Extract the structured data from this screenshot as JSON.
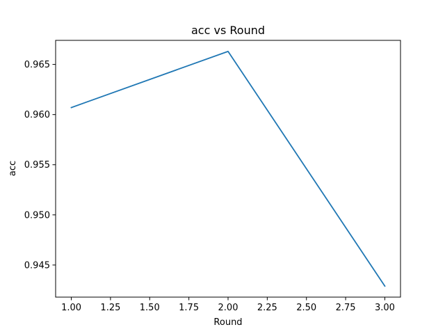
{
  "chart_data": {
    "type": "line",
    "title": "acc vs Round",
    "xlabel": "Round",
    "ylabel": "acc",
    "xlim": [
      0.9,
      3.1
    ],
    "ylim": [
      0.9418,
      0.9674
    ],
    "xticks": [
      1.0,
      1.25,
      1.5,
      1.75,
      2.0,
      2.25,
      2.5,
      2.75,
      3.0
    ],
    "xtick_labels": [
      "1.00",
      "1.25",
      "1.50",
      "1.75",
      "2.00",
      "2.25",
      "2.50",
      "2.75",
      "3.00"
    ],
    "yticks": [
      0.945,
      0.95,
      0.955,
      0.96,
      0.965
    ],
    "ytick_labels": [
      "0.945",
      "0.950",
      "0.955",
      "0.960",
      "0.965"
    ],
    "grid": false,
    "series": [
      {
        "color": "#1f77b4",
        "x": [
          1,
          2,
          3
        ],
        "y": [
          0.9607,
          0.9663,
          0.9429
        ]
      }
    ]
  }
}
